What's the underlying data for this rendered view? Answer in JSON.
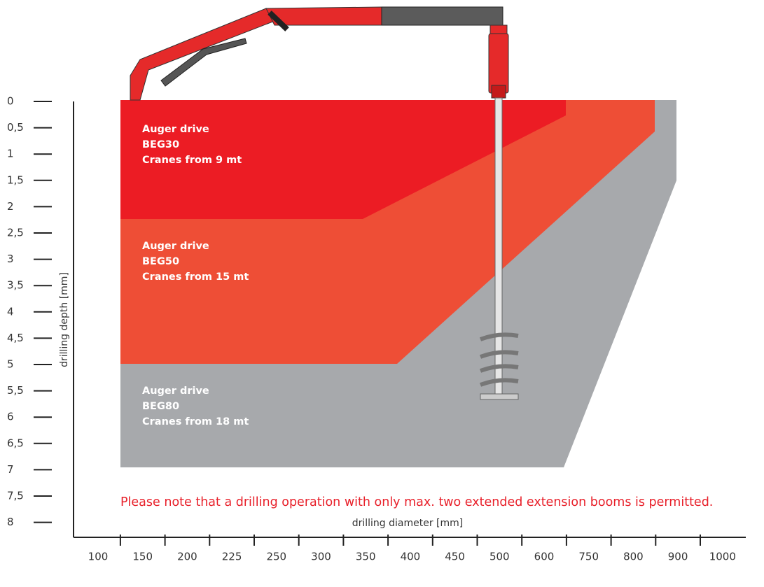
{
  "y_axis": {
    "label": "drilling depth [mm]",
    "ticks": [
      "0",
      "0,5",
      "1",
      "1,5",
      "2",
      "2,5",
      "3",
      "3,5",
      "4",
      "4,5",
      "5",
      "5,5",
      "6",
      "6,5",
      "7",
      "7,5",
      "8"
    ]
  },
  "x_axis": {
    "label": "drilling diameter [mm]",
    "ticks": [
      "100",
      "150",
      "200",
      "225",
      "250",
      "300",
      "350",
      "400",
      "450",
      "500",
      "600",
      "750",
      "800",
      "900",
      "1000"
    ]
  },
  "regions": [
    {
      "lines": [
        "Auger drive",
        "BEG30",
        "Cranes from 9 mt"
      ]
    },
    {
      "lines": [
        "Auger drive",
        "BEG50",
        "Cranes from 15 mt"
      ]
    },
    {
      "lines": [
        "Auger drive",
        "BEG80",
        "Cranes from 18 mt"
      ]
    }
  ],
  "note": "Please note that a drilling operation with only max. two extended extension booms is permitted."
}
